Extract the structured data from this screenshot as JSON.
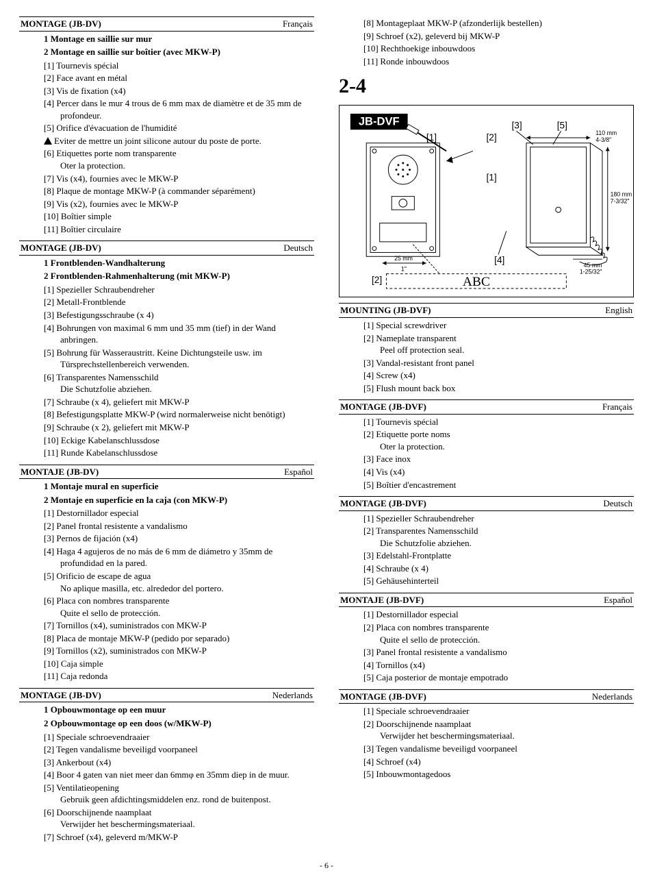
{
  "page_number": "- 6 -",
  "big_section": "2-4",
  "left": [
    {
      "title": "MONTAGE (JB-DV)",
      "lang": "Français",
      "subheads": [
        {
          "n": "1",
          "text": "Montage en saillie sur mur"
        },
        {
          "n": "2",
          "text": "Montage en saillie sur boîtier (avec MKW-P)"
        }
      ],
      "items": [
        {
          "n": "[1]",
          "text": "Tournevis spécial"
        },
        {
          "n": "[2]",
          "text": "Face avant en métal"
        },
        {
          "n": "[3]",
          "text": "Vis de fixation (x4)"
        },
        {
          "n": "[4]",
          "text": "Percer dans le mur 4 trous de 6 mm max de diamètre et de 35 mm de profondeur."
        },
        {
          "n": "[5]",
          "text": "Orifice d'évacuation de l'humidité"
        },
        {
          "n": "",
          "warn": true,
          "text": "Eviter de mettre un joint silicone autour du poste de porte."
        },
        {
          "n": "[6]",
          "text": "Etiquettes porte nom transparente",
          "sub": "Oter la protection."
        },
        {
          "n": "[7]",
          "text": "Vis (x4), fournies avec le MKW-P"
        },
        {
          "n": "[8]",
          "text": "Plaque de montage MKW-P (à commander séparément)"
        },
        {
          "n": "[9]",
          "text": "Vis (x2), fournies avec le MKW-P"
        },
        {
          "n": "[10]",
          "text": "Boîtier simple"
        },
        {
          "n": "[11]",
          "text": "Boîtier circulaire"
        }
      ]
    },
    {
      "title": "MONTAGE (JB-DV)",
      "lang": "Deutsch",
      "subheads": [
        {
          "n": "1",
          "text": "Frontblenden-Wandhalterung"
        },
        {
          "n": "2",
          "text": "Frontblenden-Rahmenhalterung (mit MKW-P)"
        }
      ],
      "items": [
        {
          "n": "[1]",
          "text": "Spezieller Schraubendreher"
        },
        {
          "n": "[2]",
          "text": "Metall-Frontblende"
        },
        {
          "n": "[3]",
          "text": "Befestigungsschraube (x 4)"
        },
        {
          "n": "[4]",
          "text": "Bohrungen von maximal 6 mm und 35 mm (tief) in der Wand anbringen."
        },
        {
          "n": "[5]",
          "text": "Bohrung für Wasseraustritt. Keine Dichtungsteile usw. im Türsprechstellenbereich verwenden."
        },
        {
          "n": "[6]",
          "text": "Transparentes Namensschild",
          "sub": "Die Schutzfolie abziehen."
        },
        {
          "n": "[7]",
          "text": "Schraube (x 4), geliefert mit MKW-P"
        },
        {
          "n": "[8]",
          "text": "Befestigungsplatte MKW-P (wird normalerweise nicht benötigt)"
        },
        {
          "n": "[9]",
          "text": "Schraube (x 2), geliefert mit MKW-P"
        },
        {
          "n": "[10]",
          "text": "Eckige Kabelanschlussdose"
        },
        {
          "n": "[11]",
          "text": "Runde Kabelanschlussdose"
        }
      ]
    },
    {
      "title": "MONTAJE (JB-DV)",
      "lang": "Español",
      "subheads": [
        {
          "n": "1",
          "text": "Montaje mural en superficie"
        },
        {
          "n": "2",
          "text": "Montaje en superficie en la caja (con MKW-P)"
        }
      ],
      "items": [
        {
          "n": "[1]",
          "text": "Destornillador especial"
        },
        {
          "n": "[2]",
          "text": "Panel frontal resistente a vandalismo"
        },
        {
          "n": "[3]",
          "text": "Pernos de fijación (x4)"
        },
        {
          "n": "[4]",
          "text": "Haga 4 agujeros de no más de 6 mm de diámetro y 35mm de profundidad en la pared."
        },
        {
          "n": "[5]",
          "text": "Orificio de escape de agua",
          "sub": "No aplique masilla, etc. alrededor del portero."
        },
        {
          "n": "[6]",
          "text": "Placa con nombres transparente",
          "sub": "Quite el sello de protección."
        },
        {
          "n": "[7]",
          "text": "Tornillos (x4), suministrados con MKW-P"
        },
        {
          "n": "[8]",
          "text": "Placa de montaje MKW-P (pedido por separado)"
        },
        {
          "n": "[9]",
          "text": "Tornillos (x2), suministrados con MKW-P"
        },
        {
          "n": "[10]",
          "text": "Caja simple"
        },
        {
          "n": "[11]",
          "text": "Caja redonda"
        }
      ]
    },
    {
      "title": "MONTAGE (JB-DV)",
      "lang": "Nederlands",
      "subheads": [
        {
          "n": "1",
          "text": "Opbouwmontage op een muur"
        },
        {
          "n": "2",
          "text": "Opbouwmontage op een doos (w/MKW-P)"
        }
      ],
      "items": [
        {
          "n": "[1]",
          "text": "Speciale schroevendraaier"
        },
        {
          "n": "[2]",
          "text": "Tegen vandalisme beveiligd voorpaneel"
        },
        {
          "n": "[3]",
          "text": "Ankerbout (x4)"
        },
        {
          "n": "[4]",
          "text": "Boor 4 gaten van niet meer dan 6mmφ en 35mm diep in de muur."
        },
        {
          "n": "[5]",
          "text": "Ventilatieopening",
          "sub": "Gebruik geen afdichtingsmiddelen enz. rond de buitenpost."
        },
        {
          "n": "[6]",
          "text": "Doorschijnende naamplaat",
          "sub": "Verwijder het beschermingsmateriaal."
        },
        {
          "n": "[7]",
          "text": "Schroef (x4), geleverd m/MKW-P"
        }
      ]
    }
  ],
  "right_top_items": [
    {
      "n": "[8]",
      "text": "Montageplaat MKW-P (afzonderlijk bestellen)"
    },
    {
      "n": "[9]",
      "text": "Schroef (x2), geleverd bij MKW-P"
    },
    {
      "n": "[10]",
      "text": "Rechthoekige inbouwdoos"
    },
    {
      "n": "[11]",
      "text": "Ronde inbouwdoos"
    }
  ],
  "diagram": {
    "model": "JB-DVF",
    "callouts": [
      "[1]",
      "[2]",
      "[3]",
      "[4]",
      "[5]"
    ],
    "dims": [
      {
        "label1": "110 mm",
        "label2": "4-3/8\""
      },
      {
        "label1": "180 mm",
        "label2": "7-3/32\""
      },
      {
        "label1": "45 mm",
        "label2": "1-25/32\""
      },
      {
        "label1": "25 mm",
        "label2": "1\""
      }
    ],
    "nameplate": "ABC"
  },
  "right_sections": [
    {
      "title": "MOUNTING (JB-DVF)",
      "lang": "English",
      "items": [
        {
          "n": "[1]",
          "text": "Special screwdriver"
        },
        {
          "n": "[2]",
          "text": "Nameplate transparent",
          "sub": "Peel off protection seal."
        },
        {
          "n": "[3]",
          "text": "Vandal-resistant front panel"
        },
        {
          "n": "[4]",
          "text": "Screw (x4)"
        },
        {
          "n": "[5]",
          "text": "Flush mount back box"
        }
      ]
    },
    {
      "title": "MONTAGE (JB-DVF)",
      "lang": "Français",
      "items": [
        {
          "n": "[1]",
          "text": "Tournevis spécial"
        },
        {
          "n": "[2]",
          "text": "Etiquette porte noms",
          "sub": "Oter la protection."
        },
        {
          "n": "[3]",
          "text": "Face inox"
        },
        {
          "n": "[4]",
          "text": "Vis (x4)"
        },
        {
          "n": "[5]",
          "text": "Boîtier d'encastrement"
        }
      ]
    },
    {
      "title": "MONTAGE (JB-DVF)",
      "lang": "Deutsch",
      "items": [
        {
          "n": "[1]",
          "text": "Spezieller Schraubendreher"
        },
        {
          "n": "[2]",
          "text": "Transparentes Namensschild",
          "sub": "Die Schutzfolie abziehen."
        },
        {
          "n": "[3]",
          "text": "Edelstahl-Frontplatte"
        },
        {
          "n": "[4]",
          "text": "Schraube (x 4)"
        },
        {
          "n": "[5]",
          "text": "Gehäusehinterteil"
        }
      ]
    },
    {
      "title": "MONTAJE (JB-DVF)",
      "lang": "Español",
      "items": [
        {
          "n": "[1]",
          "text": "Destornillador especial"
        },
        {
          "n": "[2]",
          "text": "Placa con nombres transparente",
          "sub": "Quite el sello de protección."
        },
        {
          "n": "[3]",
          "text": "Panel frontal resistente a vandalismo"
        },
        {
          "n": "[4]",
          "text": "Tornillos (x4)"
        },
        {
          "n": "[5]",
          "text": "Caja posterior de montaje empotrado"
        }
      ]
    },
    {
      "title": "MONTAGE (JB-DVF)",
      "lang": "Nederlands",
      "items": [
        {
          "n": "[1]",
          "text": "Speciale schroevendraaier"
        },
        {
          "n": "[2]",
          "text": "Doorschijnende naamplaat",
          "sub": "Verwijder het beschermingsmateriaal."
        },
        {
          "n": "[3]",
          "text": "Tegen vandalisme beveiligd voorpaneel"
        },
        {
          "n": "[4]",
          "text": "Schroef (x4)"
        },
        {
          "n": "[5]",
          "text": "Inbouwmontagedoos"
        }
      ]
    }
  ]
}
